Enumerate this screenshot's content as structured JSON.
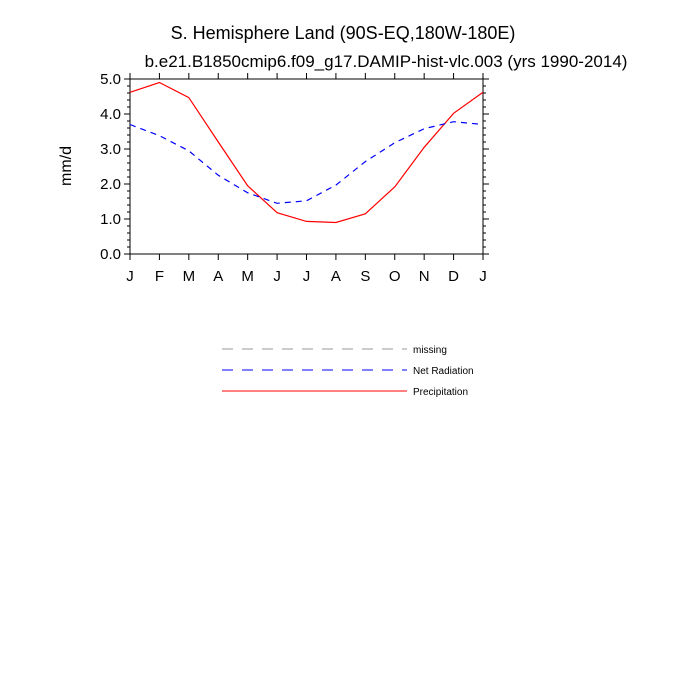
{
  "chart_data": {
    "type": "line",
    "title": "S. Hemisphere Land (90S-EQ,180W-180E)",
    "subtitle": "b.e21.B1850cmip6.f09_g17.DAMIP-hist-vlc.003 (yrs 1990-2014)",
    "xlabel": "",
    "ylabel": "mm/d",
    "ylim": [
      0,
      5
    ],
    "yticks": [
      "0.0",
      "1.0",
      "2.0",
      "3.0",
      "4.0",
      "5.0"
    ],
    "categories": [
      "J",
      "F",
      "M",
      "A",
      "M",
      "J",
      "J",
      "A",
      "S",
      "O",
      "N",
      "D",
      "J"
    ],
    "series": [
      {
        "name": "Precipitation",
        "color": "#ff0000",
        "dash": "solid",
        "values": [
          4.62,
          4.9,
          4.47,
          3.2,
          1.95,
          1.18,
          0.93,
          0.9,
          1.15,
          1.92,
          3.05,
          4.02,
          4.62
        ]
      },
      {
        "name": "Net Radiation",
        "color": "#0000ff",
        "dash": "dashed",
        "values": [
          3.7,
          3.38,
          2.95,
          2.25,
          1.75,
          1.45,
          1.52,
          1.97,
          2.64,
          3.18,
          3.58,
          3.78,
          3.7
        ]
      }
    ],
    "legend": [
      {
        "label": "missing",
        "color": "#999999",
        "dash": "dashed"
      },
      {
        "label": "Net Radiation",
        "color": "#0000ff",
        "dash": "dashed"
      },
      {
        "label": "Precipitation",
        "color": "#ff0000",
        "dash": "solid"
      }
    ]
  }
}
